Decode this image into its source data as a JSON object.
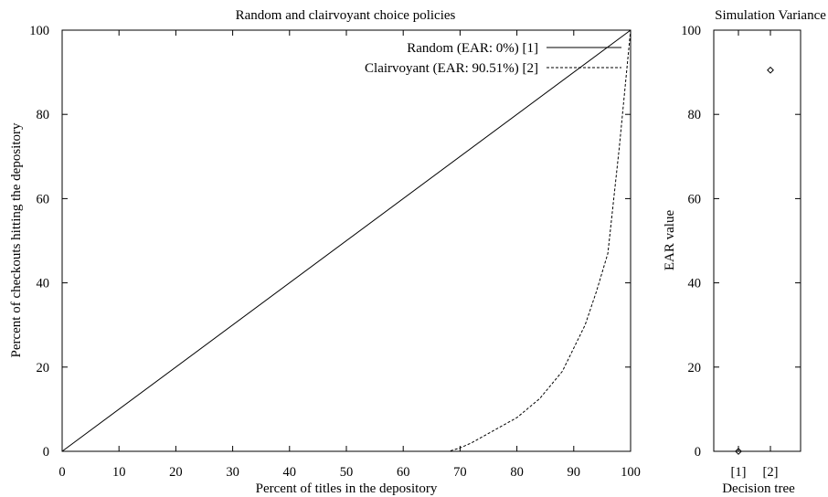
{
  "chart_data": [
    {
      "type": "line",
      "title": "Random and clairvoyant choice policies",
      "xlabel": "Percent of titles in the depository",
      "ylabel": "Percent of checkouts hitting the depository",
      "xlim": [
        0,
        100
      ],
      "ylim": [
        0,
        100
      ],
      "x_ticks": [
        "0",
        "10",
        "20",
        "30",
        "40",
        "50",
        "60",
        "70",
        "80",
        "90",
        "100"
      ],
      "y_ticks": [
        "0",
        "20",
        "40",
        "60",
        "80",
        "100"
      ],
      "grid": false,
      "legend": "top-right",
      "series": [
        {
          "name": "Random (EAR: 0%) [1]",
          "style": "solid",
          "x": [
            0,
            100
          ],
          "y": [
            0,
            100
          ]
        },
        {
          "name": "Clairvoyant (EAR: 90.51%) [2]",
          "style": "dashed",
          "x": [
            0,
            68,
            70,
            72,
            76,
            80,
            84,
            88,
            92,
            94,
            96,
            98,
            100
          ],
          "y": [
            0,
            0,
            0.8,
            2,
            5,
            8,
            12.5,
            19,
            30,
            38,
            47,
            72,
            100
          ]
        }
      ]
    },
    {
      "type": "scatter",
      "title": "Simulation Variance",
      "xlabel": "Decision tree",
      "ylabel": "EAR value",
      "ylim": [
        0,
        100
      ],
      "y_ticks": [
        "0",
        "20",
        "40",
        "60",
        "80",
        "100"
      ],
      "categories": [
        "[1]",
        "[2]"
      ],
      "values": [
        0,
        90.51
      ],
      "grid": false
    }
  ]
}
